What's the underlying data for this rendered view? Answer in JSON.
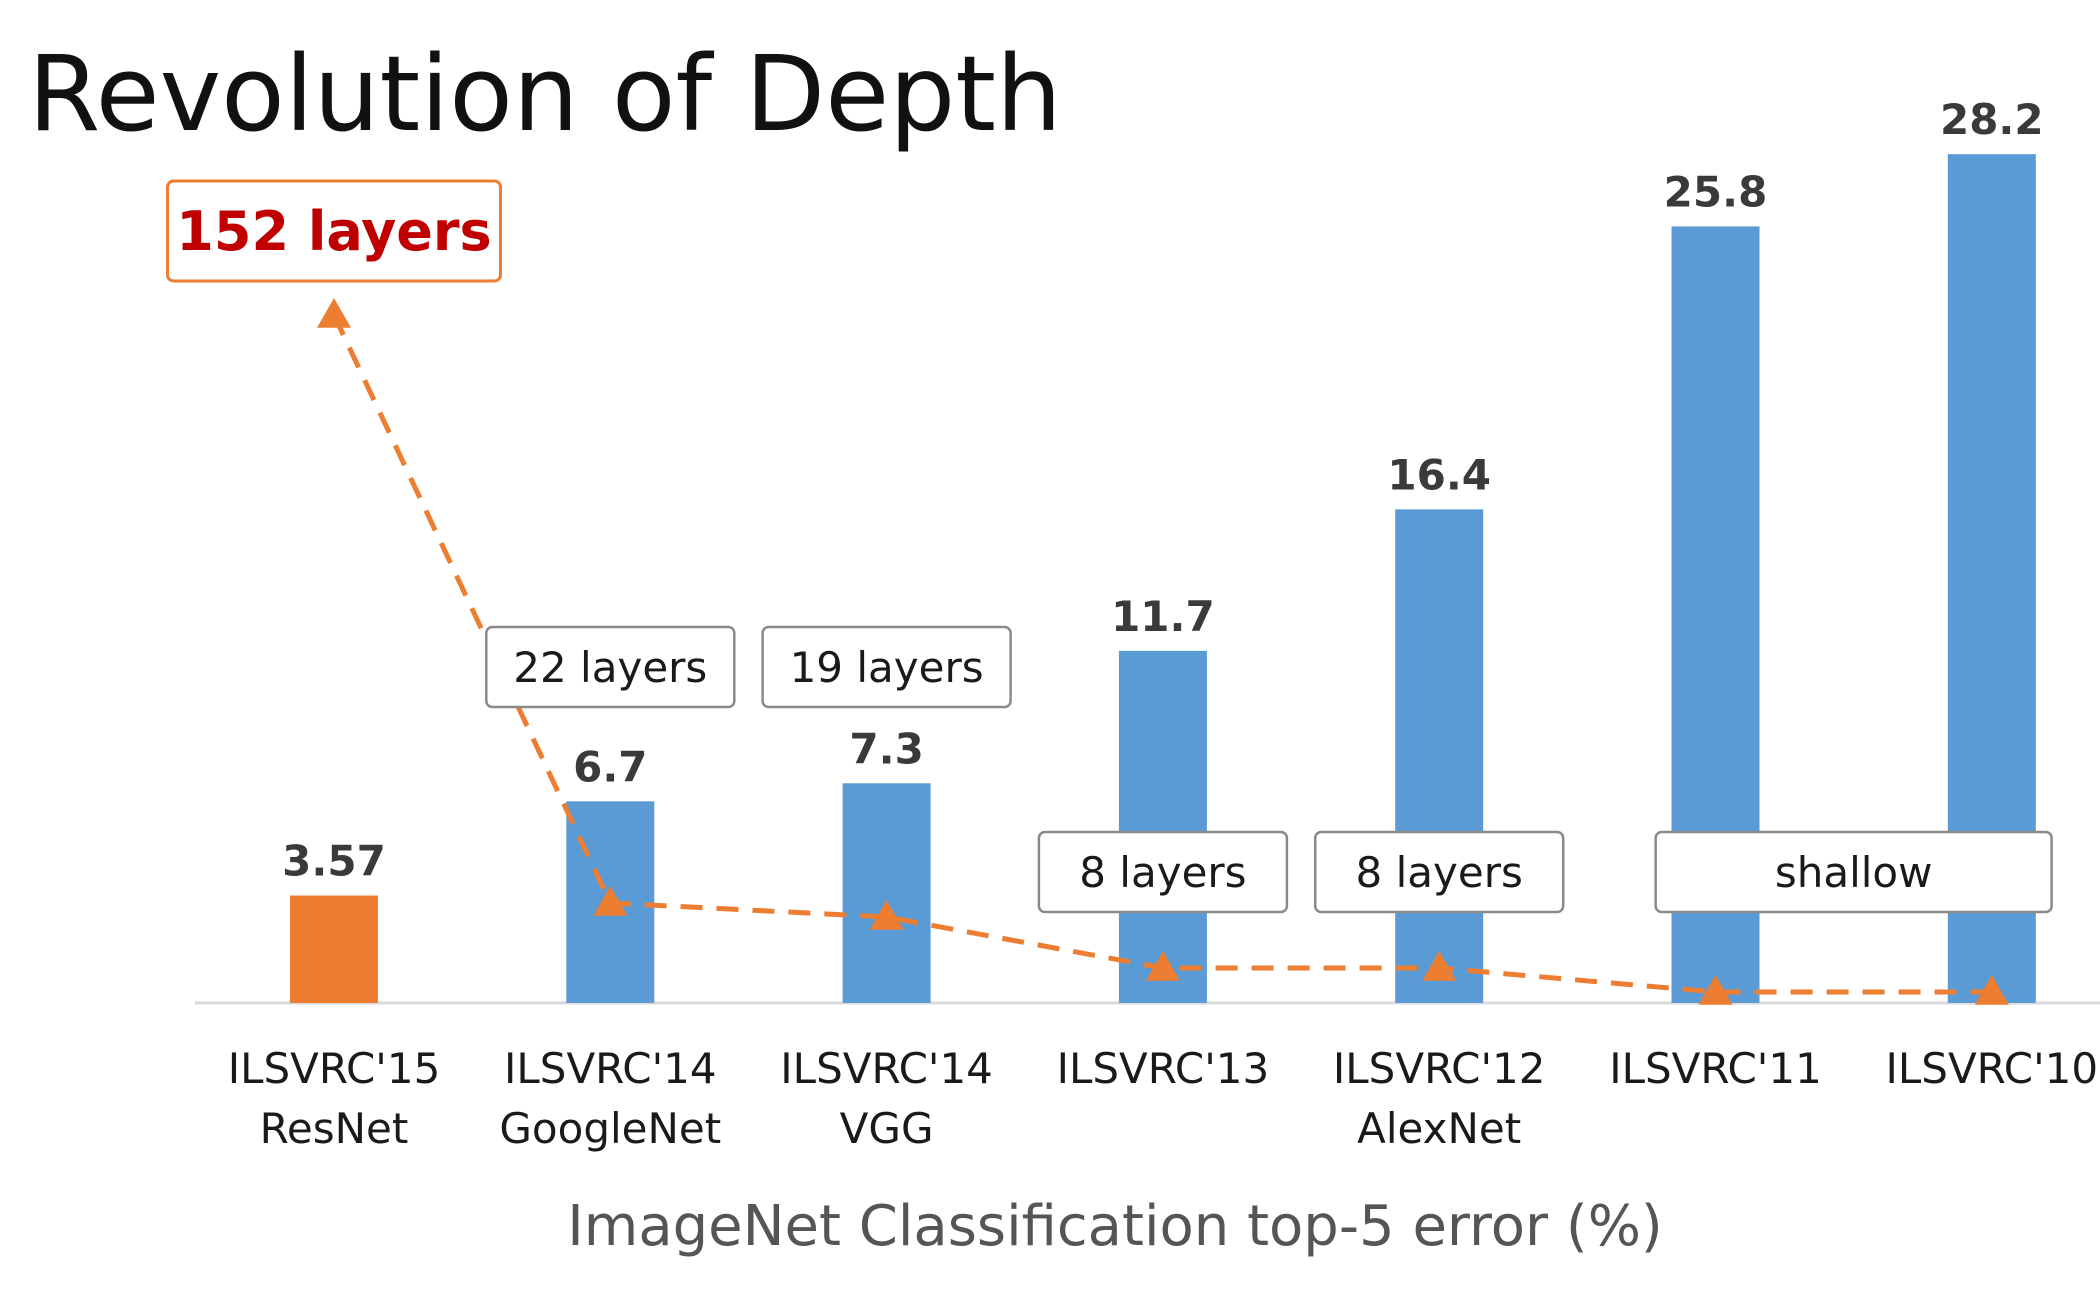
{
  "chart_data": {
    "type": "bar",
    "title": "Revolution of Depth",
    "xlabel": "ImageNet Classification top-5 error (%)",
    "ylabel": "",
    "ylim": [
      0,
      30
    ],
    "grid": false,
    "categories": [
      [
        "ILSVRC'15",
        "ResNet"
      ],
      [
        "ILSVRC'14",
        "GoogleNet"
      ],
      [
        "ILSVRC'14",
        "VGG"
      ],
      [
        "ILSVRC'13"
      ],
      [
        "ILSVRC'12",
        "AlexNet"
      ],
      [
        "ILSVRC'11"
      ],
      [
        "ILSVRC'10"
      ]
    ],
    "values": [
      3.57,
      6.7,
      7.3,
      11.7,
      16.4,
      25.8,
      28.2
    ],
    "value_labels": [
      "3.57",
      "6.7",
      "7.3",
      "11.7",
      "16.4",
      "25.8",
      "28.2"
    ],
    "bar_colors": [
      "#ed7d31",
      "#5b9bd5",
      "#5b9bd5",
      "#5b9bd5",
      "#5b9bd5",
      "#5b9bd5",
      "#5b9bd5"
    ],
    "depth_series": {
      "values": [
        152,
        22,
        19,
        8,
        8,
        1,
        1
      ],
      "color": "#ed7d31",
      "line_style": "dashed",
      "marker": "triangle"
    },
    "depth_labels": [
      {
        "bar_index": 0,
        "text": "152 layers",
        "highlight": true
      },
      {
        "bar_index": 1,
        "text": "22 layers",
        "highlight": false
      },
      {
        "bar_index": 2,
        "text": "19 layers",
        "highlight": false
      },
      {
        "bar_index": 3,
        "text": "8 layers",
        "highlight": false
      },
      {
        "bar_index": 4,
        "text": "8 layers",
        "highlight": false
      },
      {
        "bar_index": [
          5,
          6
        ],
        "text": "shallow",
        "highlight": false
      }
    ]
  }
}
